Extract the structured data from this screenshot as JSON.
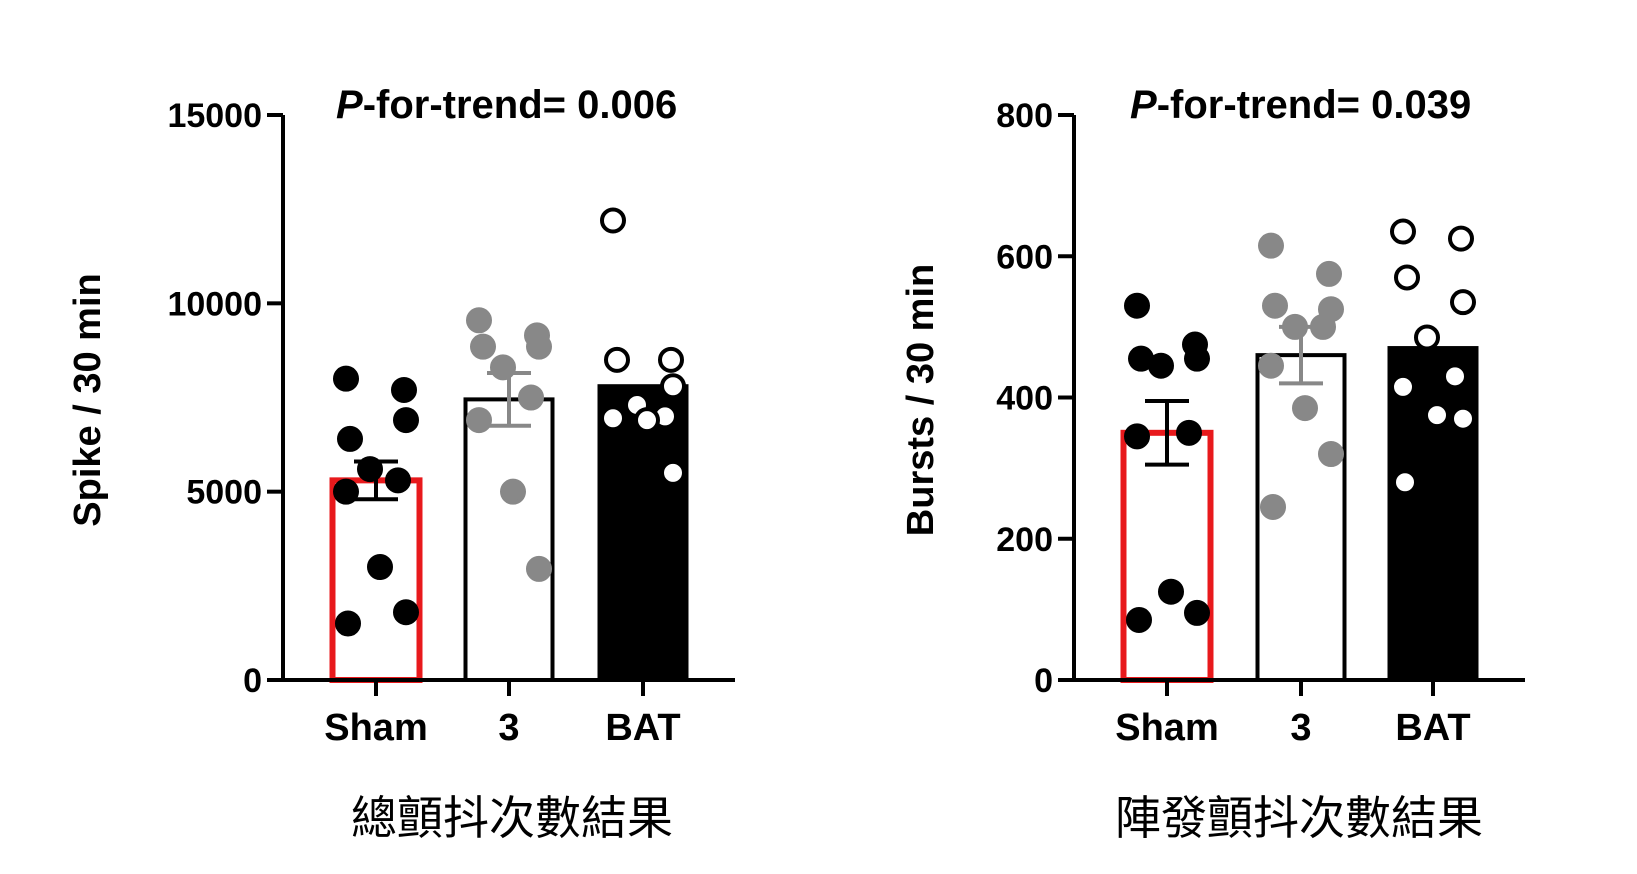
{
  "chart_data": [
    {
      "type": "bar",
      "caption": "總顫抖次數結果",
      "annotation_prefix": "P",
      "annotation_rest": "-for-trend= 0.006",
      "ylabel": "Spike / 30 min",
      "ylim": [
        0,
        15000
      ],
      "yticks": [
        0,
        5000,
        10000,
        15000
      ],
      "categories": [
        "Sham",
        "3",
        "BAT"
      ],
      "bar_fills": [
        "#ffffff",
        "#ffffff",
        "#000000"
      ],
      "bar_edges": [
        "#e8191c",
        "#000000",
        "#000000"
      ],
      "point_fills": [
        "#000000",
        "#888888",
        "#ffffff"
      ],
      "point_edges": [
        "#000000",
        "#888888",
        "#000000"
      ],
      "values": [
        5300,
        7450,
        7800
      ],
      "sem": [
        500,
        700,
        0
      ],
      "points": [
        [
          8000,
          7700,
          6400,
          6900,
          5600,
          5300,
          5000,
          3000,
          1800,
          1500
        ],
        [
          9550,
          9150,
          8850,
          8850,
          8300,
          7500,
          6900,
          5000,
          2950
        ],
        [
          12200,
          8500,
          8500,
          7800,
          7300,
          7000,
          6950,
          6900,
          5500
        ]
      ]
    },
    {
      "type": "bar",
      "caption": "陣發顫抖次數結果",
      "annotation_prefix": "P",
      "annotation_rest": "-for-trend= 0.039",
      "ylabel": "Bursts / 30 min",
      "ylim": [
        0,
        800
      ],
      "yticks": [
        0,
        200,
        400,
        600,
        800
      ],
      "categories": [
        "Sham",
        "3",
        "BAT"
      ],
      "bar_fills": [
        "#ffffff",
        "#ffffff",
        "#000000"
      ],
      "bar_edges": [
        "#e8191c",
        "#000000",
        "#000000"
      ],
      "point_fills": [
        "#000000",
        "#888888",
        "#ffffff"
      ],
      "point_edges": [
        "#000000",
        "#888888",
        "#000000"
      ],
      "values": [
        350,
        460,
        470
      ],
      "sem": [
        45,
        40,
        0
      ],
      "points": [
        [
          530,
          475,
          455,
          455,
          445,
          350,
          345,
          125,
          95,
          85
        ],
        [
          615,
          575,
          530,
          525,
          500,
          500,
          445,
          385,
          320,
          245
        ],
        [
          635,
          625,
          570,
          535,
          485,
          430,
          415,
          375,
          370,
          280
        ]
      ]
    }
  ]
}
